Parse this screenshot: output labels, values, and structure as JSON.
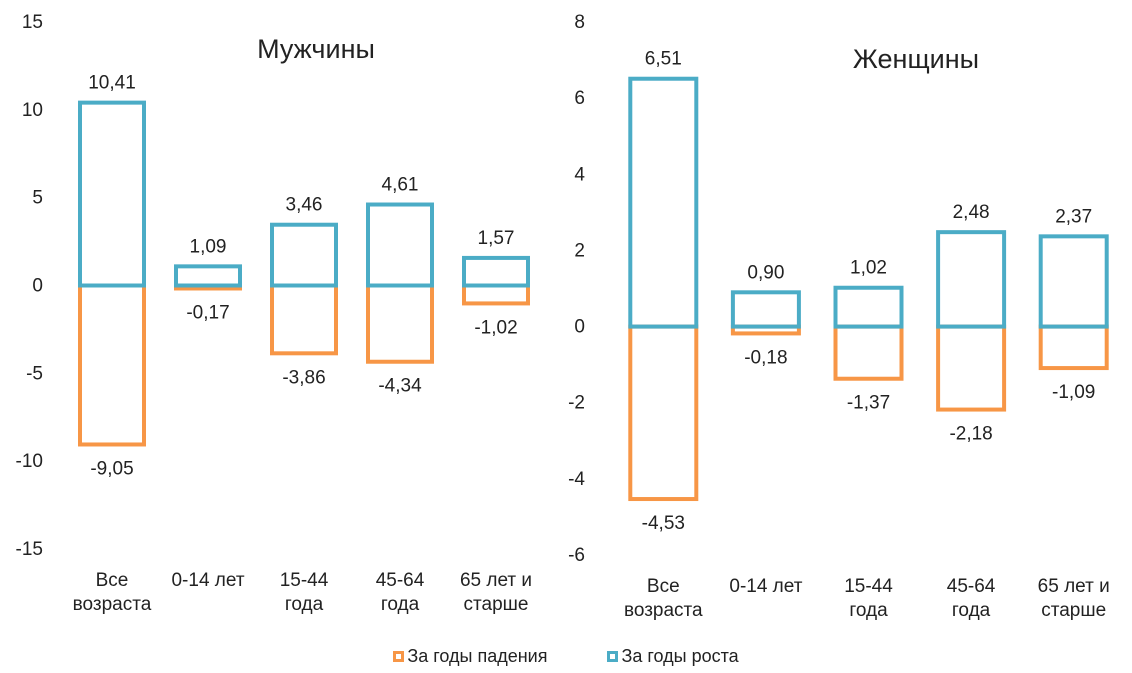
{
  "colors": {
    "fall": "#F79646",
    "growth": "#4BACC6"
  },
  "legend": {
    "fall_label": "За годы падения",
    "growth_label": "За годы роста"
  },
  "chart_data": [
    {
      "type": "bar",
      "title": "Мужчины",
      "categories": [
        [
          "Все",
          "возраста"
        ],
        [
          "0-14 лет"
        ],
        [
          "15-44",
          "года"
        ],
        [
          "45-64",
          "года"
        ],
        [
          "65 лет и",
          "старше"
        ]
      ],
      "series": [
        {
          "name": "За годы падения",
          "values": [
            -9.05,
            -0.17,
            -3.86,
            -4.34,
            -1.02
          ],
          "labels": [
            "-9,05",
            "-0,17",
            "-3,86",
            "-4,34",
            "-1,02"
          ]
        },
        {
          "name": "За годы роста",
          "values": [
            10.41,
            1.09,
            3.46,
            4.61,
            1.57
          ],
          "labels": [
            "10,41",
            "1,09",
            "3,46",
            "4,61",
            "1,57"
          ]
        }
      ],
      "ylim": [
        -15,
        15
      ],
      "yticks": [
        -15,
        -10,
        -5,
        0,
        5,
        10,
        15
      ],
      "ytick_labels": [
        "-15",
        "-10",
        "-5",
        "0",
        "5",
        "10",
        "15"
      ]
    },
    {
      "type": "bar",
      "title": "Женщины",
      "categories": [
        [
          "Все",
          "возраста"
        ],
        [
          "0-14 лет"
        ],
        [
          "15-44",
          "года"
        ],
        [
          "45-64",
          "года"
        ],
        [
          "65 лет и",
          "старше"
        ]
      ],
      "series": [
        {
          "name": "За годы падения",
          "values": [
            -4.53,
            -0.18,
            -1.37,
            -2.18,
            -1.09
          ],
          "labels": [
            "-4,53",
            "-0,18",
            "-1,37",
            "-2,18",
            "-1,09"
          ]
        },
        {
          "name": "За годы роста",
          "values": [
            6.51,
            0.9,
            1.02,
            2.48,
            2.37
          ],
          "labels": [
            "6,51",
            "0,90",
            "1,02",
            "2,48",
            "2,37"
          ]
        }
      ],
      "ylim": [
        -6,
        8
      ],
      "yticks": [
        -6,
        -4,
        -2,
        0,
        2,
        4,
        6,
        8
      ],
      "ytick_labels": [
        "-6",
        "-4",
        "-2",
        "0",
        "2",
        "4",
        "6",
        "8"
      ]
    }
  ]
}
